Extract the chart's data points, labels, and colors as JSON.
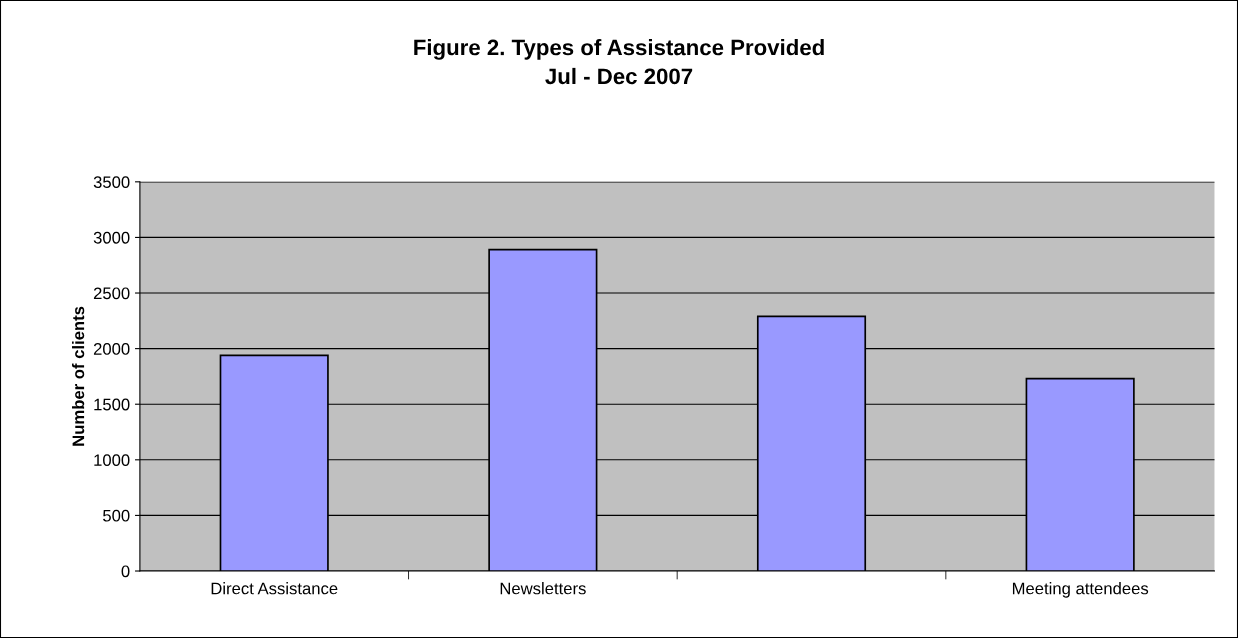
{
  "chart_data": {
    "type": "bar",
    "title": "Figure 2. Types of Assistance Provided\nJul - Dec 2007",
    "ylabel": "Number of clients",
    "categories": [
      "Direct Assistance",
      "Newsletters",
      null,
      "Meeting attendees"
    ],
    "values": [
      1940,
      2890,
      2290,
      1730
    ],
    "color": "#9999ff",
    "ylim": [
      0,
      3500
    ],
    "yticks": [
      0,
      500,
      1000,
      1500,
      2000,
      2500,
      3000,
      3500
    ],
    "grid": "y"
  }
}
